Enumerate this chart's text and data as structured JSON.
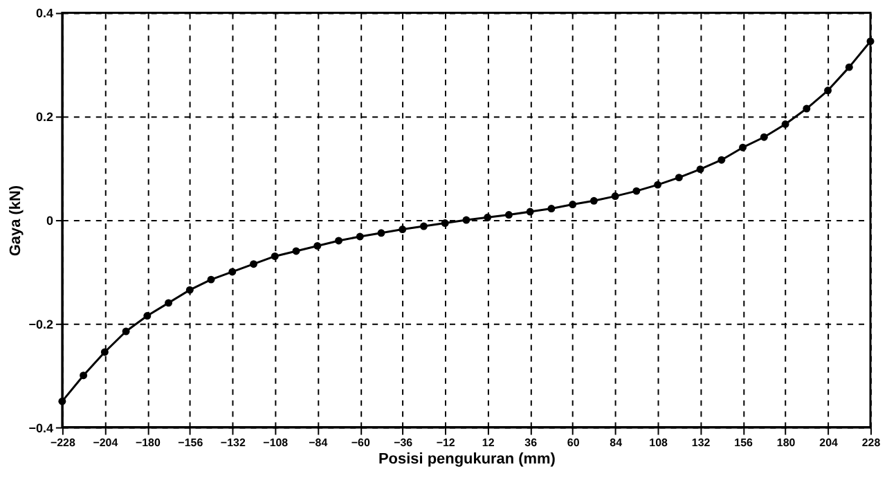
{
  "chart_data": {
    "type": "line",
    "xlabel": "Posisi pengukuran (mm)",
    "ylabel": "Gaya (kN)",
    "x": [
      -228,
      -216,
      -204,
      -192,
      -180,
      -168,
      -156,
      -144,
      -132,
      -120,
      -108,
      -96,
      -84,
      -72,
      -60,
      -48,
      -36,
      -24,
      -12,
      0,
      12,
      24,
      36,
      48,
      60,
      72,
      84,
      96,
      108,
      120,
      132,
      144,
      156,
      168,
      180,
      192,
      204,
      216,
      228
    ],
    "series": [
      {
        "color": "#000000",
        "values": [
          -0.35,
          -0.3,
          -0.255,
          -0.215,
          -0.185,
          -0.16,
          -0.135,
          -0.115,
          -0.1,
          -0.085,
          -0.07,
          -0.06,
          -0.05,
          -0.04,
          -0.032,
          -0.025,
          -0.018,
          -0.012,
          -0.006,
          0,
          0.005,
          0.01,
          0.016,
          0.022,
          0.03,
          0.037,
          0.046,
          0.056,
          0.068,
          0.082,
          0.098,
          0.116,
          0.14,
          0.16,
          0.185,
          0.215,
          0.25,
          0.295,
          0.345
        ]
      }
    ],
    "xlim": [
      -228,
      228
    ],
    "xticks": [
      -228,
      -204,
      -180,
      -156,
      -132,
      -108,
      -84,
      -60,
      -36,
      -12,
      12,
      36,
      60,
      84,
      108,
      132,
      156,
      180,
      204,
      228
    ],
    "ylim": [
      -0.4,
      0.4
    ],
    "yticks": [
      -0.4,
      -0.2,
      0,
      0.2,
      0.4
    ],
    "grid": true,
    "marker": "circle",
    "line_style": "solid",
    "legend": false
  }
}
